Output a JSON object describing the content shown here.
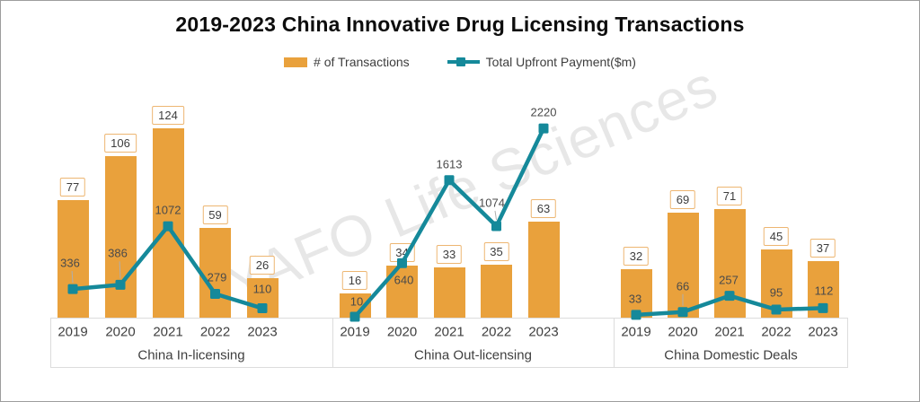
{
  "title": "2019-2023 China Innovative Drug Licensing Transactions",
  "watermark": "YAFO Life Sciences",
  "legend": {
    "transactions": {
      "label": "# of Transactions"
    },
    "upfront": {
      "label": "Total Upfront Payment($m)"
    }
  },
  "colors": {
    "bar": "#e9a13c",
    "bar_label_border": "#edb672",
    "line": "#15899a",
    "leader": "#aeaeae",
    "axis_text": "#3f3f3f",
    "band_border": "#dcdcdc"
  },
  "chart_data": {
    "type": "bar",
    "subtype": "combo-bar-line-small-multiples",
    "title": "2019-2023 China Innovative Drug Licensing Transactions",
    "legend_position": "top",
    "grid": false,
    "categories": [
      "2019",
      "2020",
      "2021",
      "2022",
      "2023"
    ],
    "panels": [
      {
        "label": "China In-licensing",
        "series": [
          {
            "name": "# of Transactions",
            "type": "bar",
            "values": [
              77,
              106,
              124,
              59,
              26
            ]
          },
          {
            "name": "Total Upfront Payment($m)",
            "type": "line",
            "values": [
              336,
              386,
              1072,
              279,
              110
            ]
          }
        ]
      },
      {
        "label": "China Out-licensing",
        "series": [
          {
            "name": "# of Transactions",
            "type": "bar",
            "values": [
              16,
              34,
              33,
              35,
              63
            ]
          },
          {
            "name": "Total Upfront Payment($m)",
            "type": "line",
            "values": [
              10,
              640,
              1613,
              1074,
              2220
            ]
          }
        ]
      },
      {
        "label": "China Domestic Deals",
        "series": [
          {
            "name": "# of Transactions",
            "type": "bar",
            "values": [
              32,
              69,
              71,
              45,
              37
            ]
          },
          {
            "name": "Total Upfront Payment($m)",
            "type": "line",
            "values": [
              33,
              66,
              257,
              95,
              112
            ]
          }
        ]
      }
    ]
  }
}
